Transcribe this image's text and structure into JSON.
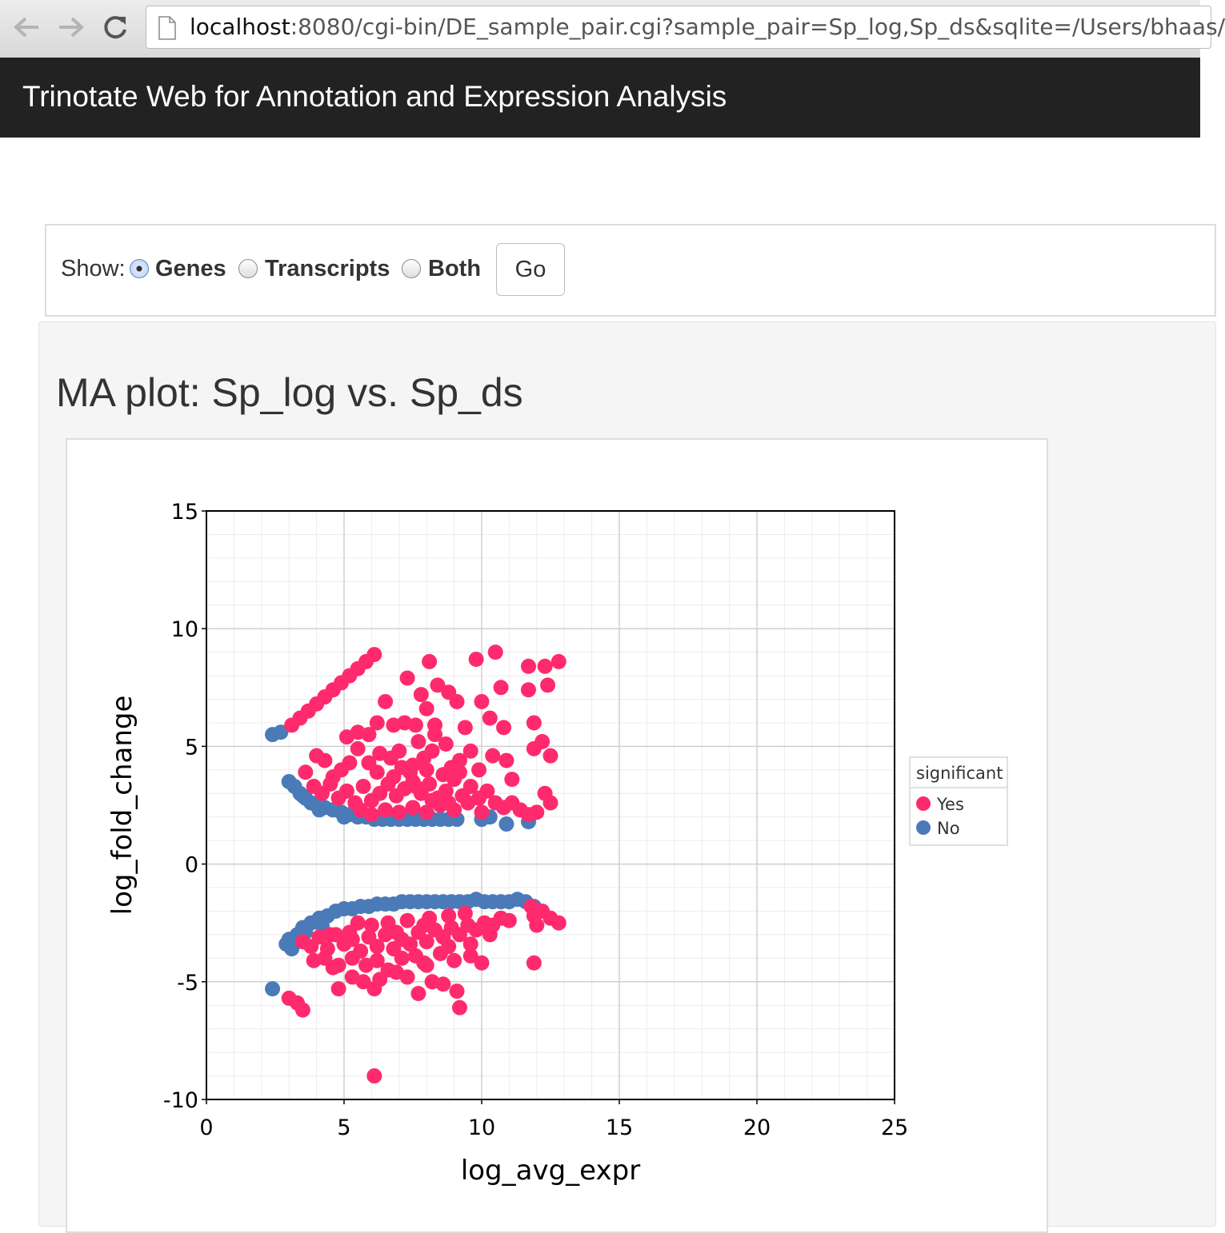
{
  "browser": {
    "url_host": "localhost",
    "url_rest": ":8080/cgi-bin/DE_sample_pair.cgi?sample_pair=Sp_log,Sp_ds&sqlite=/Users/bhaas/"
  },
  "navbar": {
    "brand": "Trinotate Web for Annotation and Expression Analysis"
  },
  "filter": {
    "show_label": "Show:",
    "options": [
      {
        "label": "Genes",
        "checked": true
      },
      {
        "label": "Transcripts",
        "checked": false
      },
      {
        "label": "Both",
        "checked": false
      }
    ],
    "go_label": "Go"
  },
  "plot_title": "MA plot: Sp_log vs. Sp_ds",
  "chart_data": {
    "type": "scatter",
    "xlabel": "log_avg_expr",
    "ylabel": "log_fold_change",
    "xlim": [
      0,
      25
    ],
    "ylim": [
      -10,
      15
    ],
    "xticks": [
      0,
      5,
      10,
      15,
      20,
      25
    ],
    "yticks": [
      -10,
      -5,
      0,
      5,
      10,
      15
    ],
    "grid": true,
    "legend": {
      "title": "significant",
      "position": "right"
    },
    "series": [
      {
        "name": "Yes",
        "color": "#ff2a6d",
        "points": [
          [
            3.1,
            5.9
          ],
          [
            3.4,
            6.2
          ],
          [
            3.7,
            6.5
          ],
          [
            4.0,
            6.8
          ],
          [
            4.3,
            7.1
          ],
          [
            4.6,
            7.4
          ],
          [
            4.9,
            7.7
          ],
          [
            5.2,
            8.0
          ],
          [
            5.5,
            8.3
          ],
          [
            5.8,
            8.6
          ],
          [
            6.1,
            8.9
          ],
          [
            5.1,
            5.4
          ],
          [
            5.5,
            5.6
          ],
          [
            5.9,
            5.5
          ],
          [
            6.2,
            6.0
          ],
          [
            6.5,
            6.9
          ],
          [
            6.8,
            5.9
          ],
          [
            7.2,
            6.0
          ],
          [
            7.6,
            5.9
          ],
          [
            8.0,
            6.6
          ],
          [
            8.3,
            5.5
          ],
          [
            8.8,
            7.3
          ],
          [
            8.1,
            8.6
          ],
          [
            9.8,
            8.7
          ],
          [
            10.5,
            9.0
          ],
          [
            11.7,
            8.4
          ],
          [
            12.3,
            8.4
          ],
          [
            12.8,
            8.6
          ],
          [
            10.7,
            7.5
          ],
          [
            11.7,
            7.4
          ],
          [
            12.4,
            7.6
          ],
          [
            10.0,
            6.9
          ],
          [
            10.3,
            6.2
          ],
          [
            10.8,
            5.8
          ],
          [
            11.9,
            6.0
          ],
          [
            12.2,
            5.2
          ],
          [
            11.9,
            4.9
          ],
          [
            12.5,
            4.6
          ],
          [
            11.1,
            3.6
          ],
          [
            12.3,
            3.0
          ],
          [
            12.5,
            2.6
          ],
          [
            12.0,
            2.2
          ],
          [
            7.3,
            7.9
          ],
          [
            7.8,
            7.2
          ],
          [
            8.4,
            7.6
          ],
          [
            9.1,
            6.9
          ],
          [
            9.4,
            5.8
          ],
          [
            9.6,
            4.8
          ],
          [
            9.2,
            4.4
          ],
          [
            8.7,
            5.1
          ],
          [
            8.2,
            4.8
          ],
          [
            7.9,
            4.5
          ],
          [
            7.5,
            4.2
          ],
          [
            7.1,
            4.1
          ],
          [
            6.7,
            4.5
          ],
          [
            6.3,
            4.7
          ],
          [
            5.9,
            4.3
          ],
          [
            5.5,
            4.9
          ],
          [
            5.2,
            4.3
          ],
          [
            4.9,
            4.0
          ],
          [
            4.6,
            3.7
          ],
          [
            4.3,
            4.4
          ],
          [
            4.0,
            4.6
          ],
          [
            3.6,
            3.9
          ],
          [
            3.9,
            3.3
          ],
          [
            4.2,
            3.0
          ],
          [
            4.5,
            3.4
          ],
          [
            4.8,
            2.8
          ],
          [
            5.1,
            3.1
          ],
          [
            5.4,
            2.6
          ],
          [
            5.7,
            3.3
          ],
          [
            6.0,
            2.7
          ],
          [
            6.3,
            3.0
          ],
          [
            6.6,
            3.4
          ],
          [
            6.9,
            2.9
          ],
          [
            7.2,
            3.2
          ],
          [
            7.5,
            3.5
          ],
          [
            7.8,
            3.0
          ],
          [
            8.1,
            3.4
          ],
          [
            8.4,
            2.8
          ],
          [
            8.7,
            3.1
          ],
          [
            9.0,
            3.6
          ],
          [
            9.3,
            2.9
          ],
          [
            9.6,
            3.3
          ],
          [
            9.9,
            2.8
          ],
          [
            10.2,
            3.1
          ],
          [
            10.5,
            2.6
          ],
          [
            10.8,
            2.4
          ],
          [
            11.1,
            2.6
          ],
          [
            11.4,
            2.3
          ],
          [
            11.7,
            2.1
          ],
          [
            5.6,
            2.3
          ],
          [
            6.0,
            2.1
          ],
          [
            6.5,
            2.3
          ],
          [
            7.0,
            2.2
          ],
          [
            7.5,
            2.4
          ],
          [
            8.0,
            2.2
          ],
          [
            8.5,
            2.5
          ],
          [
            9.0,
            2.3
          ],
          [
            9.5,
            2.6
          ],
          [
            10.0,
            2.2
          ],
          [
            6.2,
            3.9
          ],
          [
            6.8,
            3.7
          ],
          [
            7.4,
            3.9
          ],
          [
            8.0,
            4.0
          ],
          [
            8.6,
            3.8
          ],
          [
            9.2,
            3.9
          ],
          [
            7.0,
            4.8
          ],
          [
            7.7,
            5.2
          ],
          [
            8.3,
            5.9
          ],
          [
            8.9,
            4.1
          ],
          [
            9.9,
            4.0
          ],
          [
            10.4,
            4.6
          ],
          [
            10.9,
            4.4
          ],
          [
            7.6,
            3.3
          ],
          [
            8.2,
            2.7
          ],
          [
            8.8,
            2.6
          ],
          [
            3.5,
            -3.3
          ],
          [
            3.8,
            -3.5
          ],
          [
            4.1,
            -3.1
          ],
          [
            4.4,
            -3.6
          ],
          [
            4.7,
            -3.0
          ],
          [
            5.0,
            -3.4
          ],
          [
            5.3,
            -3.2
          ],
          [
            5.6,
            -3.7
          ],
          [
            5.9,
            -3.1
          ],
          [
            6.2,
            -3.5
          ],
          [
            6.5,
            -3.0
          ],
          [
            6.8,
            -3.6
          ],
          [
            7.1,
            -3.2
          ],
          [
            7.4,
            -3.4
          ],
          [
            7.7,
            -2.9
          ],
          [
            8.0,
            -3.3
          ],
          [
            8.3,
            -2.8
          ],
          [
            8.6,
            -3.1
          ],
          [
            8.9,
            -2.7
          ],
          [
            9.2,
            -3.0
          ],
          [
            9.5,
            -2.6
          ],
          [
            9.8,
            -2.8
          ],
          [
            10.1,
            -2.5
          ],
          [
            10.4,
            -2.6
          ],
          [
            10.7,
            -2.3
          ],
          [
            11.0,
            -2.4
          ],
          [
            4.3,
            -4.0
          ],
          [
            4.8,
            -4.3
          ],
          [
            5.3,
            -4.0
          ],
          [
            5.8,
            -4.3
          ],
          [
            6.2,
            -4.1
          ],
          [
            6.6,
            -4.5
          ],
          [
            7.1,
            -4.0
          ],
          [
            7.6,
            -3.9
          ],
          [
            8.0,
            -4.3
          ],
          [
            8.5,
            -3.8
          ],
          [
            9.0,
            -4.1
          ],
          [
            9.6,
            -3.9
          ],
          [
            10.0,
            -4.2
          ],
          [
            10.3,
            -3.0
          ],
          [
            3.9,
            -4.1
          ],
          [
            4.6,
            -4.4
          ],
          [
            5.3,
            -4.8
          ],
          [
            5.7,
            -5.0
          ],
          [
            6.1,
            -5.3
          ],
          [
            6.3,
            -4.9
          ],
          [
            6.9,
            -4.6
          ],
          [
            7.3,
            -4.8
          ],
          [
            7.9,
            -4.2
          ],
          [
            8.2,
            -5.0
          ],
          [
            8.6,
            -5.1
          ],
          [
            9.1,
            -5.4
          ],
          [
            7.7,
            -5.5
          ],
          [
            9.2,
            -6.1
          ],
          [
            4.8,
            -5.3
          ],
          [
            3.0,
            -5.7
          ],
          [
            3.3,
            -5.9
          ],
          [
            3.5,
            -6.2
          ],
          [
            11.9,
            -4.2
          ],
          [
            11.9,
            -2.2
          ],
          [
            12.2,
            -2.0
          ],
          [
            12.5,
            -2.3
          ],
          [
            12.8,
            -2.5
          ],
          [
            12.0,
            -2.6
          ],
          [
            11.8,
            -1.8
          ],
          [
            6.0,
            -2.6
          ],
          [
            6.6,
            -2.5
          ],
          [
            7.3,
            -2.4
          ],
          [
            8.1,
            -2.3
          ],
          [
            8.8,
            -2.2
          ],
          [
            9.4,
            -2.1
          ],
          [
            5.2,
            -2.9
          ],
          [
            4.5,
            -3.0
          ],
          [
            5.5,
            -2.5
          ],
          [
            6.9,
            -2.9
          ],
          [
            7.9,
            -2.6
          ],
          [
            8.8,
            -3.5
          ],
          [
            9.6,
            -3.4
          ],
          [
            6.1,
            -9.0
          ]
        ]
      },
      {
        "name": "No",
        "color": "#4a7ab8",
        "points": [
          [
            2.4,
            5.5
          ],
          [
            2.7,
            5.6
          ],
          [
            3.0,
            3.5
          ],
          [
            3.2,
            3.3
          ],
          [
            3.4,
            3.0
          ],
          [
            3.6,
            2.8
          ],
          [
            3.8,
            2.6
          ],
          [
            4.0,
            2.5
          ],
          [
            4.3,
            2.4
          ],
          [
            4.6,
            2.3
          ],
          [
            4.9,
            2.2
          ],
          [
            5.2,
            2.1
          ],
          [
            5.5,
            2.0
          ],
          [
            5.8,
            2.0
          ],
          [
            6.1,
            1.9
          ],
          [
            6.4,
            1.9
          ],
          [
            6.7,
            1.9
          ],
          [
            7.0,
            1.9
          ],
          [
            7.3,
            1.9
          ],
          [
            7.6,
            1.9
          ],
          [
            7.9,
            1.9
          ],
          [
            8.2,
            1.9
          ],
          [
            8.5,
            1.9
          ],
          [
            8.8,
            1.9
          ],
          [
            9.1,
            1.9
          ],
          [
            10.0,
            1.9
          ],
          [
            10.3,
            2.0
          ],
          [
            10.9,
            1.7
          ],
          [
            11.7,
            1.8
          ],
          [
            3.5,
            2.9
          ],
          [
            4.1,
            2.3
          ],
          [
            5.0,
            2.0
          ],
          [
            6.3,
            2.0
          ],
          [
            7.2,
            2.0
          ],
          [
            8.1,
            2.0
          ],
          [
            2.4,
            -5.3
          ],
          [
            2.9,
            -3.4
          ],
          [
            3.1,
            -3.6
          ],
          [
            3.3,
            -3.0
          ],
          [
            3.5,
            -2.7
          ],
          [
            3.8,
            -2.5
          ],
          [
            4.1,
            -2.3
          ],
          [
            4.4,
            -2.2
          ],
          [
            4.7,
            -2.0
          ],
          [
            5.0,
            -1.9
          ],
          [
            5.3,
            -1.9
          ],
          [
            5.6,
            -1.8
          ],
          [
            5.9,
            -1.8
          ],
          [
            6.2,
            -1.7
          ],
          [
            6.5,
            -1.7
          ],
          [
            6.8,
            -1.7
          ],
          [
            7.1,
            -1.6
          ],
          [
            7.4,
            -1.6
          ],
          [
            7.7,
            -1.6
          ],
          [
            8.0,
            -1.6
          ],
          [
            8.3,
            -1.6
          ],
          [
            8.6,
            -1.6
          ],
          [
            8.9,
            -1.6
          ],
          [
            9.2,
            -1.6
          ],
          [
            9.5,
            -1.6
          ],
          [
            9.8,
            -1.5
          ],
          [
            10.1,
            -1.6
          ],
          [
            10.4,
            -1.6
          ],
          [
            10.7,
            -1.6
          ],
          [
            11.0,
            -1.6
          ],
          [
            11.3,
            -1.5
          ],
          [
            11.6,
            -1.6
          ],
          [
            11.9,
            -1.8
          ],
          [
            3.0,
            -3.2
          ],
          [
            3.6,
            -2.9
          ],
          [
            4.2,
            -2.6
          ]
        ]
      }
    ]
  }
}
